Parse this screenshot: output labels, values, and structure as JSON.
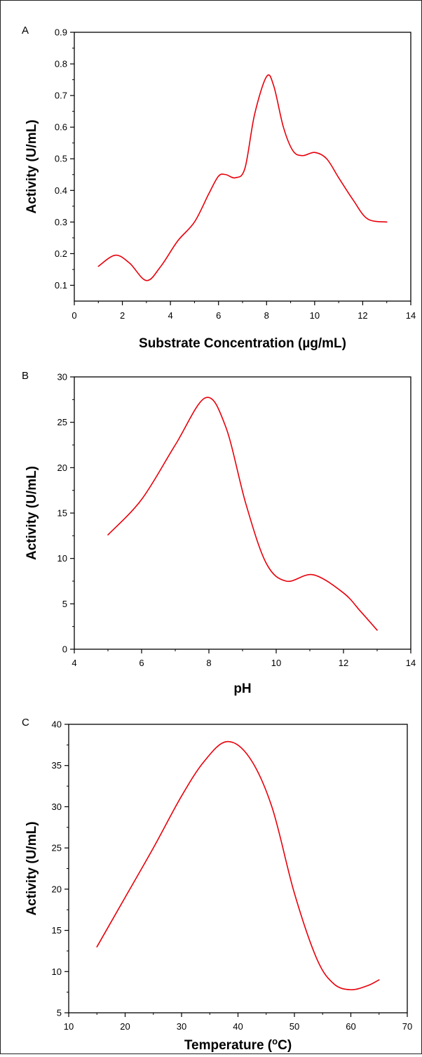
{
  "chart_data": [
    {
      "type": "line",
      "panel_label": "A",
      "xlabel": "Substrate Concentration (µg/mL)",
      "ylabel": "Activity (U/mL)",
      "xlim": [
        0,
        14
      ],
      "ylim": [
        0.05,
        0.9
      ],
      "xticks": [
        "0",
        "2",
        "4",
        "6",
        "8",
        "10",
        "12",
        "14"
      ],
      "yticks": [
        "0.1",
        "0.2",
        "0.3",
        "0.4",
        "0.5",
        "0.6",
        "0.7",
        "0.8",
        "0.9"
      ],
      "grid": false,
      "series": [
        {
          "color": "#e8000b",
          "x": [
            1,
            1.7,
            2.3,
            3,
            3.6,
            4.3,
            5,
            5.6,
            6,
            6.3,
            6.7,
            7.1,
            7.5,
            8,
            8.3,
            8.7,
            9.1,
            9.5,
            10,
            10.5,
            11,
            11.6,
            12.2,
            13
          ],
          "y": [
            0.16,
            0.195,
            0.17,
            0.115,
            0.16,
            0.24,
            0.3,
            0.39,
            0.445,
            0.45,
            0.44,
            0.47,
            0.64,
            0.76,
            0.73,
            0.6,
            0.525,
            0.51,
            0.52,
            0.5,
            0.44,
            0.37,
            0.31,
            0.3
          ]
        }
      ]
    },
    {
      "type": "line",
      "panel_label": "B",
      "xlabel": "pH",
      "ylabel": "Activity (U/mL)",
      "xlim": [
        4,
        14
      ],
      "ylim": [
        0,
        30
      ],
      "xticks": [
        "4",
        "6",
        "8",
        "10",
        "12",
        "14"
      ],
      "yticks": [
        "0",
        "5",
        "10",
        "15",
        "20",
        "25",
        "30"
      ],
      "grid": false,
      "series": [
        {
          "color": "#e8000b",
          "x": [
            5,
            6,
            7,
            7.9,
            8.5,
            9.1,
            9.7,
            10.3,
            11.1,
            12,
            12.5,
            13
          ],
          "y": [
            12.6,
            16.5,
            22.5,
            27.7,
            24.5,
            16,
            9.5,
            7.5,
            8.2,
            6.2,
            4.2,
            2.1
          ]
        }
      ]
    },
    {
      "type": "line",
      "panel_label": "C",
      "xlabel": "Temperature (oC)",
      "ylabel": "Activity (U/mL)",
      "xlim": [
        10,
        70
      ],
      "ylim": [
        5,
        40
      ],
      "xticks": [
        "10",
        "20",
        "30",
        "40",
        "50",
        "60",
        "70"
      ],
      "yticks": [
        "5",
        "10",
        "15",
        "20",
        "25",
        "30",
        "35",
        "40"
      ],
      "grid": false,
      "series": [
        {
          "color": "#e8000b",
          "x": [
            15,
            20,
            25,
            30,
            34,
            38,
            42,
            46,
            50,
            54,
            57,
            60,
            63,
            65
          ],
          "y": [
            13,
            19,
            25,
            31.3,
            35.5,
            37.9,
            36,
            30,
            19.5,
            11.5,
            8.5,
            7.8,
            8.3,
            9
          ]
        }
      ]
    }
  ]
}
